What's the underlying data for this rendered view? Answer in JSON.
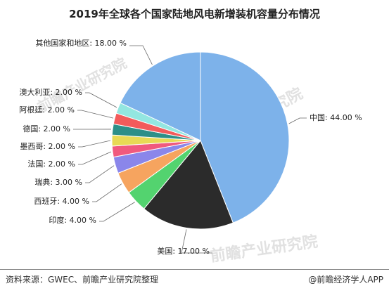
{
  "title": "2019年全球各个国家陆地风电新增装机容量分布情况",
  "footer": {
    "source": "资料来源：GWEC、前瞻产业研究院整理",
    "brand": "@前瞻经济学人APP"
  },
  "watermarks": [
    "前瞻产业研究院",
    "前瞻产业研究院",
    "前瞻产业研究院"
  ],
  "chart_data": {
    "type": "pie",
    "title": "2019年全球各个国家陆地风电新增装机容量分布情况",
    "unit": "%",
    "slices": [
      {
        "name": "中国",
        "value": 44.0,
        "label": "中国: 44.00 %",
        "color": "#7db2ea"
      },
      {
        "name": "美国",
        "value": 17.0,
        "label": "美国: 17.00 %",
        "color": "#2b2b2b"
      },
      {
        "name": "印度",
        "value": 4.0,
        "label": "印度: 4.00 %",
        "color": "#53d36f"
      },
      {
        "name": "西班牙",
        "value": 4.0,
        "label": "西班牙: 4.00 %",
        "color": "#f6a45f"
      },
      {
        "name": "瑞典",
        "value": 3.0,
        "label": "瑞典: 3.00 %",
        "color": "#8a86ea"
      },
      {
        "name": "法国",
        "value": 2.0,
        "label": "法国: 2.00 %",
        "color": "#f05a7e"
      },
      {
        "name": "墨西哥",
        "value": 2.0,
        "label": "墨西哥: 2.00 %",
        "color": "#e8da55"
      },
      {
        "name": "德国",
        "value": 2.0,
        "label": "德国: 2.00 %",
        "color": "#2d8f88"
      },
      {
        "name": "阿根廷",
        "value": 2.0,
        "label": "阿根廷: 2.00 %",
        "color": "#f25b5b"
      },
      {
        "name": "澳大利亚",
        "value": 2.0,
        "label": "澳大利亚: 2.00 %",
        "color": "#93e6e0"
      },
      {
        "name": "其他国家和地区",
        "value": 18.0,
        "label": "其他国家和地区: 18.00 %",
        "color": "#7db2ea"
      }
    ]
  }
}
